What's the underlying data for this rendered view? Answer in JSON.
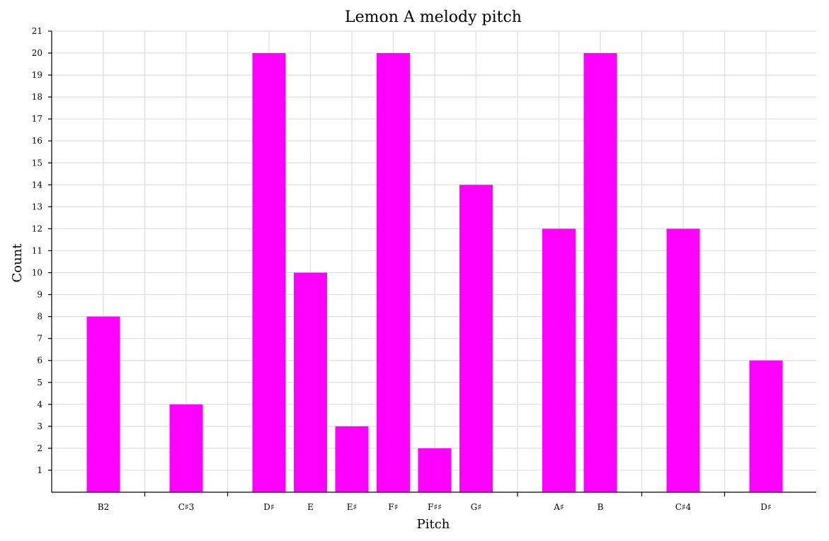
{
  "chart_data": {
    "type": "bar",
    "title": "Lemon A melody pitch",
    "xlabel": "Pitch",
    "ylabel": "Count",
    "ylim": [
      0,
      21
    ],
    "y_ticks": [
      1,
      2,
      3,
      4,
      5,
      6,
      7,
      8,
      9,
      10,
      11,
      12,
      13,
      14,
      15,
      16,
      17,
      18,
      19,
      20,
      21
    ],
    "slots": 17,
    "bars": [
      {
        "label": "B2",
        "slot": 1,
        "value": 8
      },
      {
        "label": "C♯3",
        "slot": 3,
        "value": 4
      },
      {
        "label": "D♯",
        "slot": 5,
        "value": 20
      },
      {
        "label": "E",
        "slot": 6,
        "value": 10
      },
      {
        "label": "E♯",
        "slot": 7,
        "value": 3
      },
      {
        "label": "F♯",
        "slot": 8,
        "value": 20
      },
      {
        "label": "F♯♯",
        "slot": 9,
        "value": 2
      },
      {
        "label": "G♯",
        "slot": 10,
        "value": 14
      },
      {
        "label": "A♯",
        "slot": 12,
        "value": 12
      },
      {
        "label": "B",
        "slot": 13,
        "value": 20
      },
      {
        "label": "C♯4",
        "slot": 15,
        "value": 12
      },
      {
        "label": "D♯",
        "slot": 17,
        "value": 6
      }
    ],
    "separator_slots": [
      2,
      4,
      11,
      14,
      16
    ],
    "bar_color": "#ff00ff",
    "grid": true
  }
}
